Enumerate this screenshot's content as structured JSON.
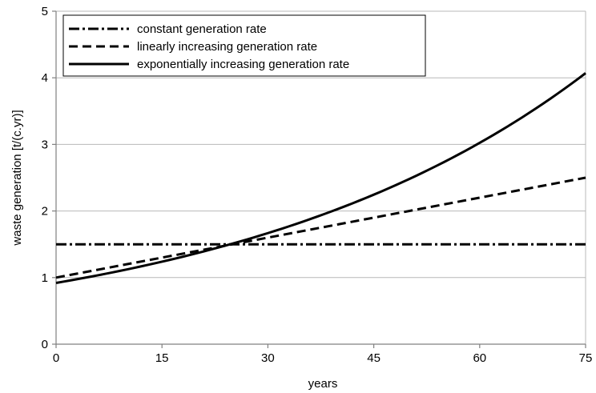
{
  "chart_data": {
    "type": "line",
    "title": "",
    "xlabel": "years",
    "ylabel": "waste generation [t/(c.yr)]",
    "xlim": [
      0,
      75
    ],
    "ylim": [
      0,
      5
    ],
    "xticks": [
      0,
      15,
      30,
      45,
      60,
      75
    ],
    "yticks": [
      0,
      1,
      2,
      3,
      4,
      5
    ],
    "grid": "horizontal",
    "legend_position": "top-left",
    "x": [
      0,
      5,
      10,
      15,
      20,
      25,
      30,
      35,
      40,
      45,
      50,
      55,
      60,
      65,
      70,
      75
    ],
    "series": [
      {
        "name": "constant generation rate",
        "style": "dash-dot",
        "values": [
          1.5,
          1.5,
          1.5,
          1.5,
          1.5,
          1.5,
          1.5,
          1.5,
          1.5,
          1.5,
          1.5,
          1.5,
          1.5,
          1.5,
          1.5,
          1.5
        ]
      },
      {
        "name": "linearly increasing generation rate",
        "style": "dashed",
        "values": [
          1.0,
          1.1,
          1.2,
          1.3,
          1.4,
          1.5,
          1.6,
          1.7,
          1.8,
          1.9,
          2.0,
          2.1,
          2.2,
          2.3,
          2.4,
          2.5
        ]
      },
      {
        "name": "exponentially increasing generation rate",
        "style": "solid",
        "values": [
          0.92,
          1.01,
          1.11,
          1.23,
          1.35,
          1.49,
          1.64,
          1.81,
          1.99,
          2.19,
          2.41,
          2.66,
          2.93,
          3.23,
          3.55,
          4.07
        ]
      }
    ],
    "colors": {
      "lines": "#000000",
      "grid": "#b8b8b8",
      "axis": "#808080"
    }
  }
}
